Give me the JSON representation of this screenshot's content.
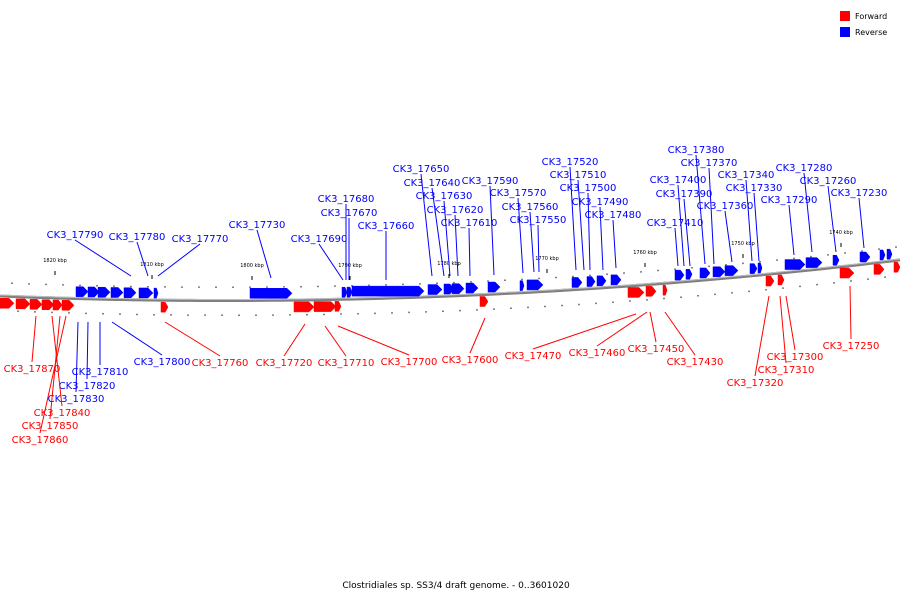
{
  "caption": "Clostridiales sp. SS3/4 draft genome. - 0..3601020",
  "legend": [
    {
      "label": "Forward",
      "color": "#ff0000"
    },
    {
      "label": "Reverse",
      "color": "#0000ff"
    }
  ],
  "colors": {
    "forward": "#ff0000",
    "reverse": "#0000ff",
    "backbone": "#7f7f7f"
  },
  "scale_ticks": [
    "1820 kbp",
    "1810 kbp",
    "1800 kbp",
    "1790 kbp",
    "1780 kbp",
    "1770 kbp",
    "1760 kbp",
    "1750 kbp",
    "1740 kbp"
  ],
  "reverse_genes": [
    "CK3_17790",
    "CK3_17780",
    "CK3_17770",
    "CK3_17730",
    "CK3_17690",
    "CK3_17680",
    "CK3_17670",
    "CK3_17660",
    "CK3_17650",
    "CK3_17640",
    "CK3_17630",
    "CK3_17620",
    "CK3_17610",
    "CK3_17590",
    "CK3_17570",
    "CK3_17560",
    "CK3_17550",
    "CK3_17520",
    "CK3_17510",
    "CK3_17500",
    "CK3_17490",
    "CK3_17480",
    "CK3_17410",
    "CK3_17400",
    "CK3_17390",
    "CK3_17380",
    "CK3_17370",
    "CK3_17360",
    "CK3_17340",
    "CK3_17330",
    "CK3_17290",
    "CK3_17280",
    "CK3_17260",
    "CK3_17230",
    "CK3_17800",
    "CK3_17810",
    "CK3_17820",
    "CK3_17830"
  ],
  "forward_genes": [
    "CK3_17870",
    "CK3_17860",
    "CK3_17850",
    "CK3_17840",
    "CK3_17760",
    "CK3_17720",
    "CK3_17710",
    "CK3_17700",
    "CK3_17600",
    "CK3_17470",
    "CK3_17460",
    "CK3_17450",
    "CK3_17430",
    "CK3_17320",
    "CK3_17310",
    "CK3_17300",
    "CK3_17250"
  ]
}
